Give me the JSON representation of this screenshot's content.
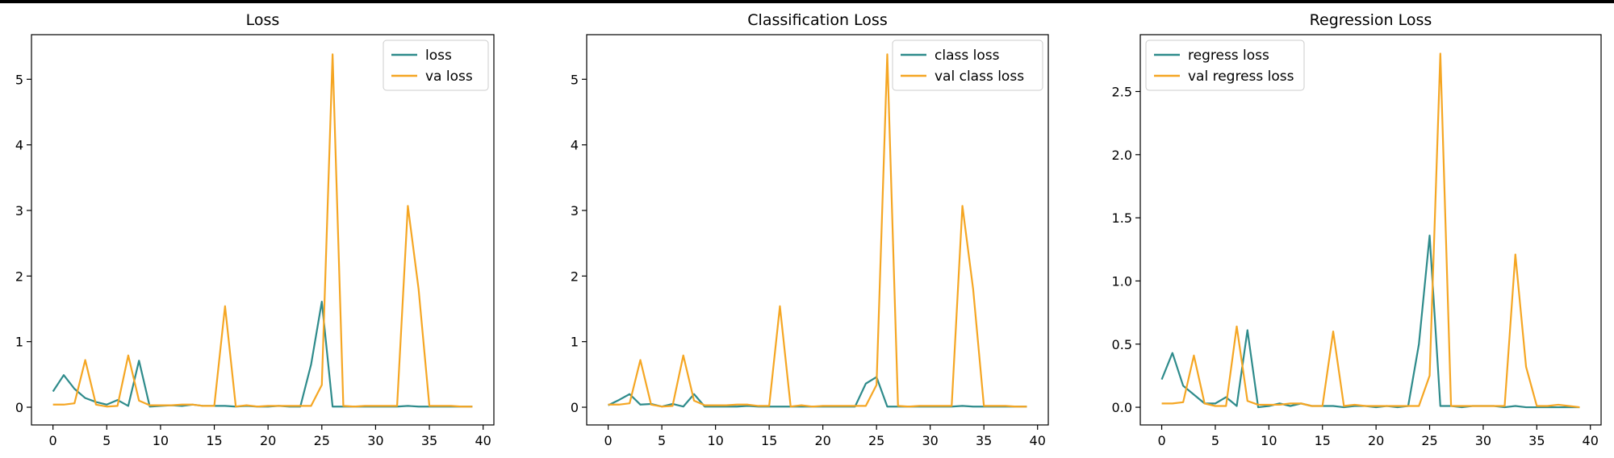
{
  "chart_data": [
    {
      "type": "line",
      "title": "Loss",
      "xlabel": "",
      "ylabel": "",
      "xlim": [
        -2,
        41
      ],
      "ylim": [
        -0.27,
        5.68
      ],
      "xticks": [
        0,
        5,
        10,
        15,
        20,
        25,
        30,
        35,
        40
      ],
      "yticks": [
        0,
        1,
        2,
        3,
        4,
        5
      ],
      "grid": false,
      "legend": "top-right",
      "x": [
        0,
        1,
        2,
        3,
        4,
        5,
        6,
        7,
        8,
        9,
        10,
        11,
        12,
        13,
        14,
        15,
        16,
        17,
        18,
        19,
        20,
        21,
        22,
        23,
        24,
        25,
        26,
        27,
        28,
        29,
        30,
        31,
        32,
        33,
        34,
        35,
        36,
        37,
        38,
        39
      ],
      "series": [
        {
          "name": "loss",
          "color": "#2e8b8b",
          "values": [
            0.24,
            0.49,
            0.28,
            0.14,
            0.08,
            0.04,
            0.11,
            0.02,
            0.71,
            0.01,
            0.02,
            0.03,
            0.02,
            0.04,
            0.02,
            0.02,
            0.02,
            0.01,
            0.02,
            0.01,
            0.01,
            0.02,
            0.01,
            0.01,
            0.65,
            1.61,
            0.01,
            0.01,
            0.01,
            0.01,
            0.01,
            0.01,
            0.01,
            0.02,
            0.01,
            0.01,
            0.01,
            0.01,
            0.01,
            0.01
          ]
        },
        {
          "name": "va loss",
          "color": "#f5a623",
          "values": [
            0.04,
            0.04,
            0.06,
            0.72,
            0.04,
            0.01,
            0.02,
            0.79,
            0.1,
            0.03,
            0.03,
            0.03,
            0.04,
            0.04,
            0.02,
            0.02,
            1.54,
            0.01,
            0.03,
            0.01,
            0.02,
            0.02,
            0.02,
            0.02,
            0.02,
            0.34,
            5.38,
            0.02,
            0.01,
            0.02,
            0.02,
            0.02,
            0.02,
            3.07,
            1.8,
            0.02,
            0.02,
            0.02,
            0.01,
            0.01
          ]
        }
      ]
    },
    {
      "type": "line",
      "title": "Classification Loss",
      "xlabel": "",
      "ylabel": "",
      "xlim": [
        -2,
        41
      ],
      "ylim": [
        -0.27,
        5.68
      ],
      "xticks": [
        0,
        5,
        10,
        15,
        20,
        25,
        30,
        35,
        40
      ],
      "yticks": [
        0,
        1,
        2,
        3,
        4,
        5
      ],
      "grid": false,
      "legend": "top-right",
      "x": [
        0,
        1,
        2,
        3,
        4,
        5,
        6,
        7,
        8,
        9,
        10,
        11,
        12,
        13,
        14,
        15,
        16,
        17,
        18,
        19,
        20,
        21,
        22,
        23,
        24,
        25,
        26,
        27,
        28,
        29,
        30,
        31,
        32,
        33,
        34,
        35,
        36,
        37,
        38,
        39
      ],
      "series": [
        {
          "name": "class loss",
          "color": "#2e8b8b",
          "values": [
            0.03,
            0.11,
            0.2,
            0.04,
            0.05,
            0.01,
            0.05,
            0.01,
            0.2,
            0.01,
            0.01,
            0.01,
            0.01,
            0.02,
            0.01,
            0.01,
            0.01,
            0.01,
            0.01,
            0.01,
            0.01,
            0.01,
            0.01,
            0.01,
            0.36,
            0.46,
            0.01,
            0.01,
            0.01,
            0.01,
            0.01,
            0.01,
            0.01,
            0.02,
            0.01,
            0.01,
            0.01,
            0.01,
            0.01,
            0.01
          ]
        },
        {
          "name": "val class loss",
          "color": "#f5a623",
          "values": [
            0.04,
            0.04,
            0.06,
            0.72,
            0.04,
            0.01,
            0.02,
            0.79,
            0.1,
            0.03,
            0.03,
            0.03,
            0.04,
            0.04,
            0.02,
            0.02,
            1.54,
            0.01,
            0.03,
            0.01,
            0.02,
            0.02,
            0.02,
            0.02,
            0.02,
            0.34,
            5.38,
            0.02,
            0.01,
            0.02,
            0.02,
            0.02,
            0.02,
            3.07,
            1.8,
            0.02,
            0.02,
            0.02,
            0.01,
            0.01
          ]
        }
      ]
    },
    {
      "type": "line",
      "title": "Regression Loss",
      "xlabel": "",
      "ylabel": "",
      "xlim": [
        -2,
        41
      ],
      "ylim": [
        -0.14,
        2.95
      ],
      "xticks": [
        0,
        5,
        10,
        15,
        20,
        25,
        30,
        35,
        40
      ],
      "yticks": [
        0.0,
        0.5,
        1.0,
        1.5,
        2.0,
        2.5
      ],
      "ytick_labels": [
        "0.0",
        "0.5",
        "1.0",
        "1.5",
        "2.0",
        "2.5"
      ],
      "grid": false,
      "legend": "top-left",
      "x": [
        0,
        1,
        2,
        3,
        4,
        5,
        6,
        7,
        8,
        9,
        10,
        11,
        12,
        13,
        14,
        15,
        16,
        17,
        18,
        19,
        20,
        21,
        22,
        23,
        24,
        25,
        26,
        27,
        28,
        29,
        30,
        31,
        32,
        33,
        34,
        35,
        36,
        37,
        38,
        39
      ],
      "series": [
        {
          "name": "regress loss",
          "color": "#2e8b8b",
          "values": [
            0.22,
            0.43,
            0.17,
            0.1,
            0.03,
            0.03,
            0.08,
            0.01,
            0.61,
            0.0,
            0.01,
            0.03,
            0.01,
            0.03,
            0.01,
            0.01,
            0.01,
            0.0,
            0.01,
            0.01,
            0.0,
            0.01,
            0.0,
            0.01,
            0.5,
            1.36,
            0.01,
            0.01,
            0.0,
            0.01,
            0.01,
            0.01,
            0.0,
            0.01,
            0.0,
            0.0,
            0.0,
            0.0,
            0.0,
            0.0
          ]
        },
        {
          "name": "val regress loss",
          "color": "#f5a623",
          "values": [
            0.03,
            0.03,
            0.04,
            0.41,
            0.03,
            0.01,
            0.01,
            0.64,
            0.05,
            0.02,
            0.02,
            0.02,
            0.03,
            0.03,
            0.01,
            0.01,
            0.6,
            0.01,
            0.02,
            0.01,
            0.01,
            0.01,
            0.01,
            0.01,
            0.01,
            0.25,
            2.8,
            0.01,
            0.01,
            0.01,
            0.01,
            0.01,
            0.01,
            1.21,
            0.32,
            0.01,
            0.01,
            0.02,
            0.01,
            0.0
          ]
        }
      ]
    }
  ]
}
